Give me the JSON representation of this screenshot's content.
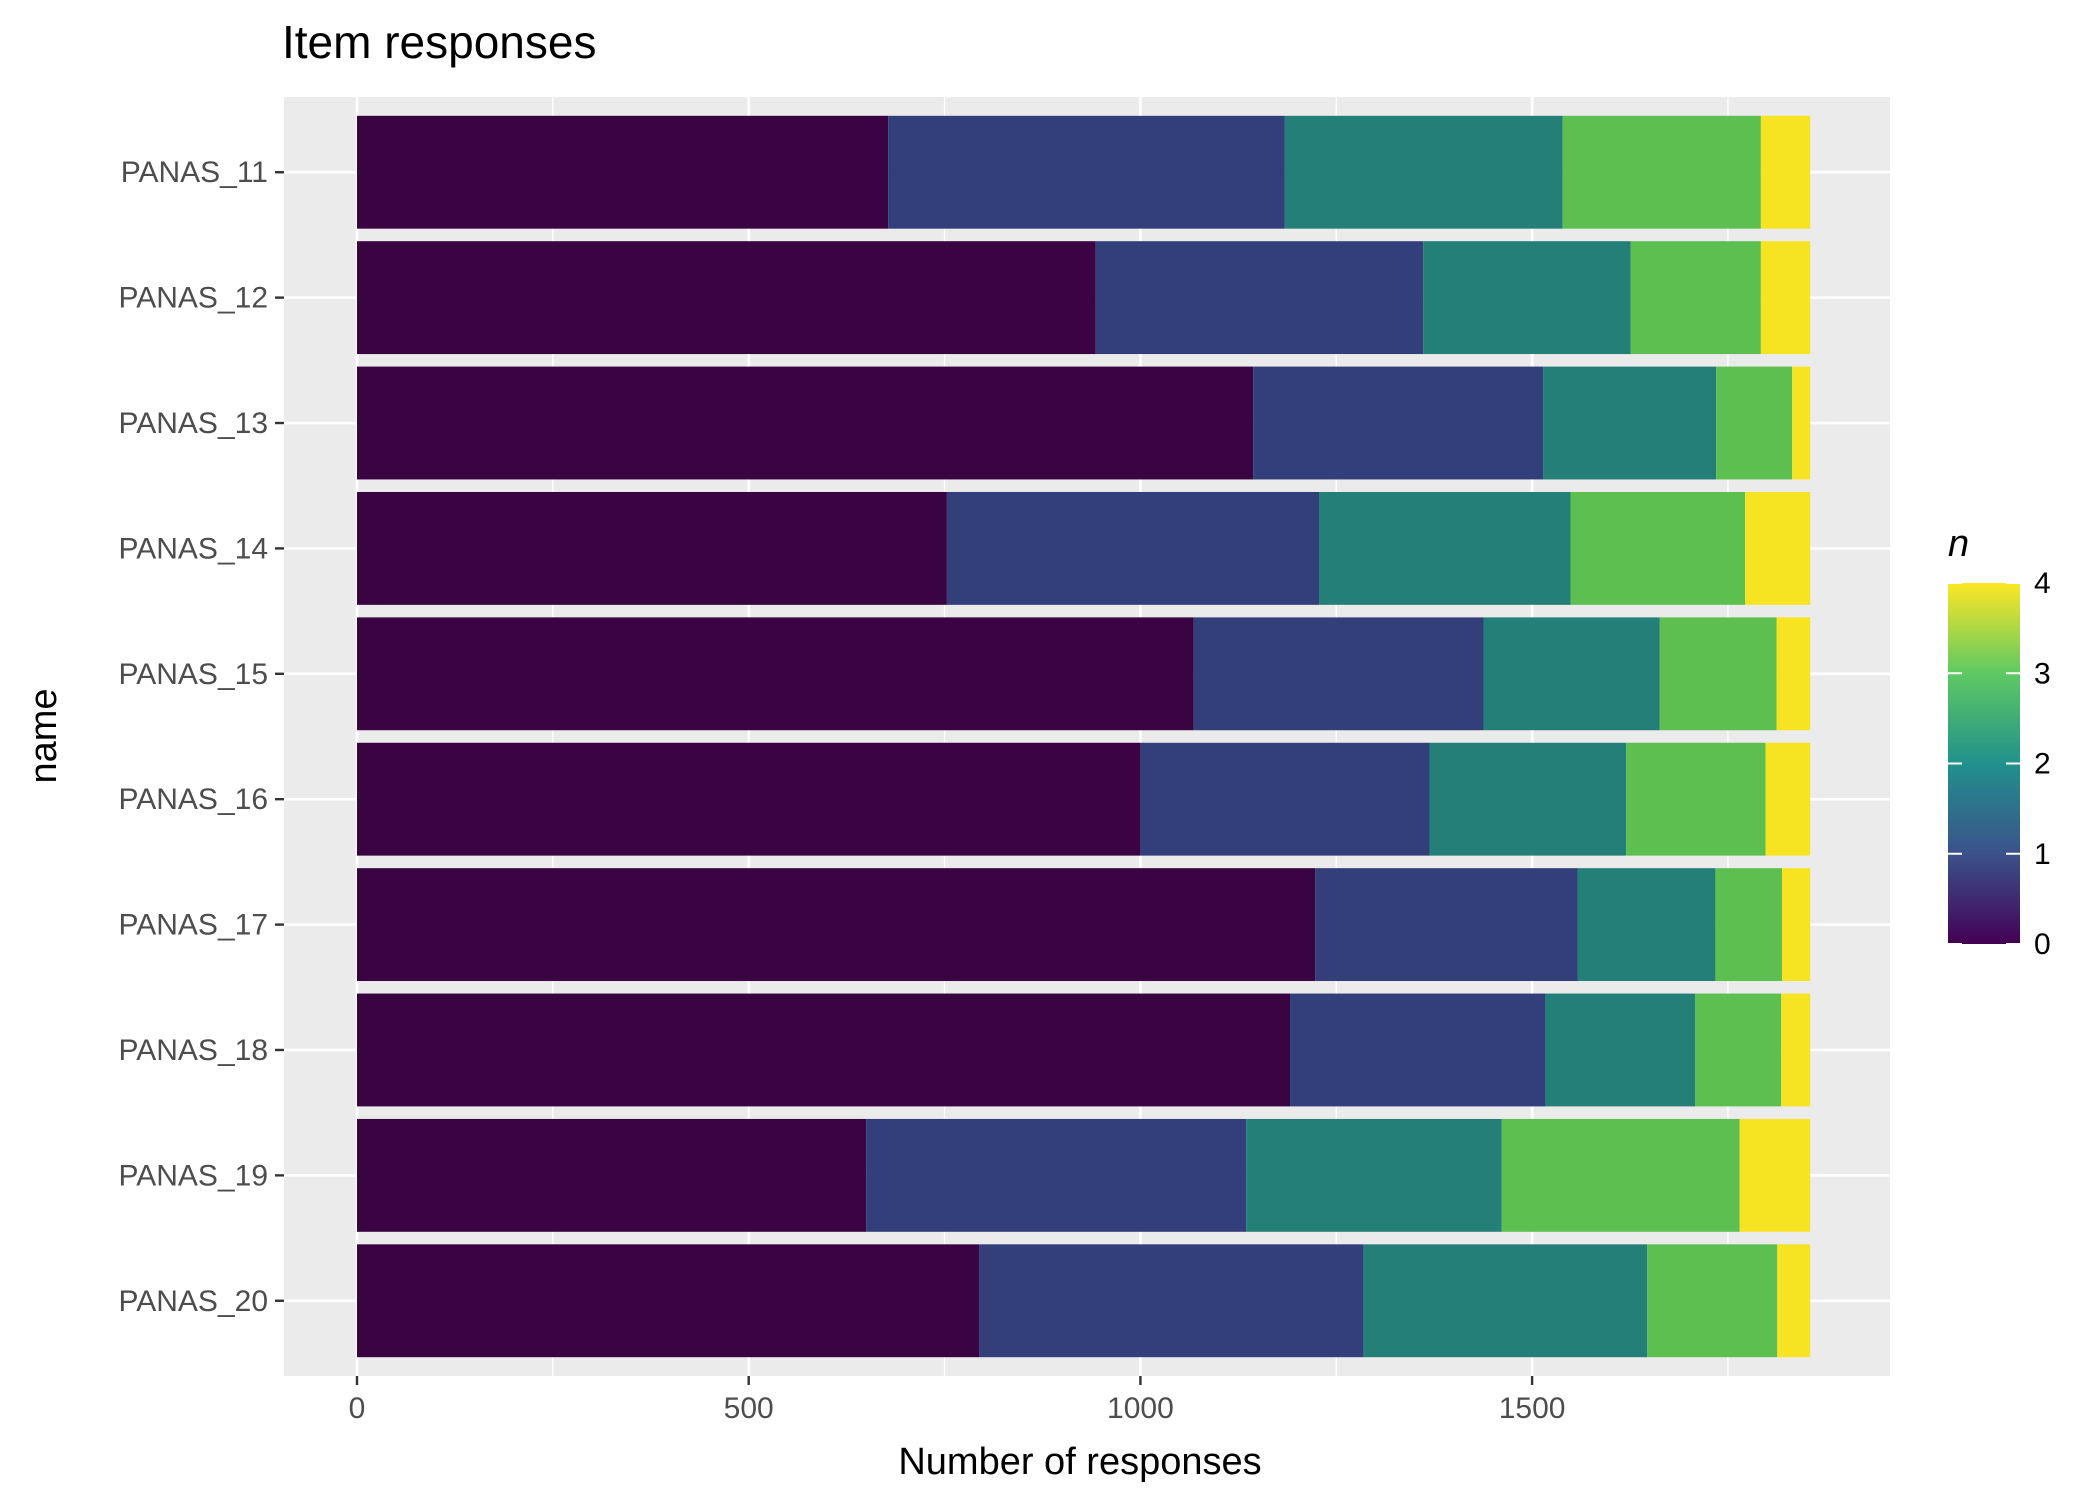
{
  "chart_data": {
    "type": "bar",
    "orientation": "horizontal",
    "stacked": true,
    "title": "Item responses",
    "xlabel": "Number of responses",
    "ylabel": "name",
    "xlim": [
      -90,
      1944
    ],
    "xticks": [
      0,
      500,
      1000,
      1500
    ],
    "grid": true,
    "legend": {
      "title": "n",
      "position": "right",
      "type": "colorbar",
      "range": [
        0,
        4
      ],
      "ticks": [
        0,
        1,
        2,
        3,
        4
      ],
      "colormap": [
        "#440154",
        "#3b528b",
        "#21918c",
        "#5ec962",
        "#fde725"
      ]
    },
    "categories": [
      "PANAS_11",
      "PANAS_12",
      "PANAS_13",
      "PANAS_14",
      "PANAS_15",
      "PANAS_16",
      "PANAS_17",
      "PANAS_18",
      "PANAS_19",
      "PANAS_20"
    ],
    "series": [
      {
        "name": "0",
        "color": "#3a0342",
        "values": [
          678,
          943,
          1144,
          753,
          1068,
          1000,
          1223,
          1191,
          650,
          794
        ]
      },
      {
        "name": "1",
        "color": "#333f7a",
        "values": [
          506,
          418,
          370,
          475,
          370,
          369,
          335,
          326,
          485,
          491
        ]
      },
      {
        "name": "2",
        "color": "#257f79",
        "values": [
          355,
          265,
          221,
          321,
          225,
          251,
          176,
          191,
          326,
          362
        ]
      },
      {
        "name": "3",
        "color": "#5cbf50",
        "values": [
          253,
          166,
          97,
          223,
          149,
          178,
          85,
          110,
          304,
          166
        ]
      },
      {
        "name": "4",
        "color": "#f6e423",
        "values": [
          63,
          63,
          23,
          83,
          43,
          57,
          36,
          37,
          90,
          42
        ]
      }
    ]
  }
}
